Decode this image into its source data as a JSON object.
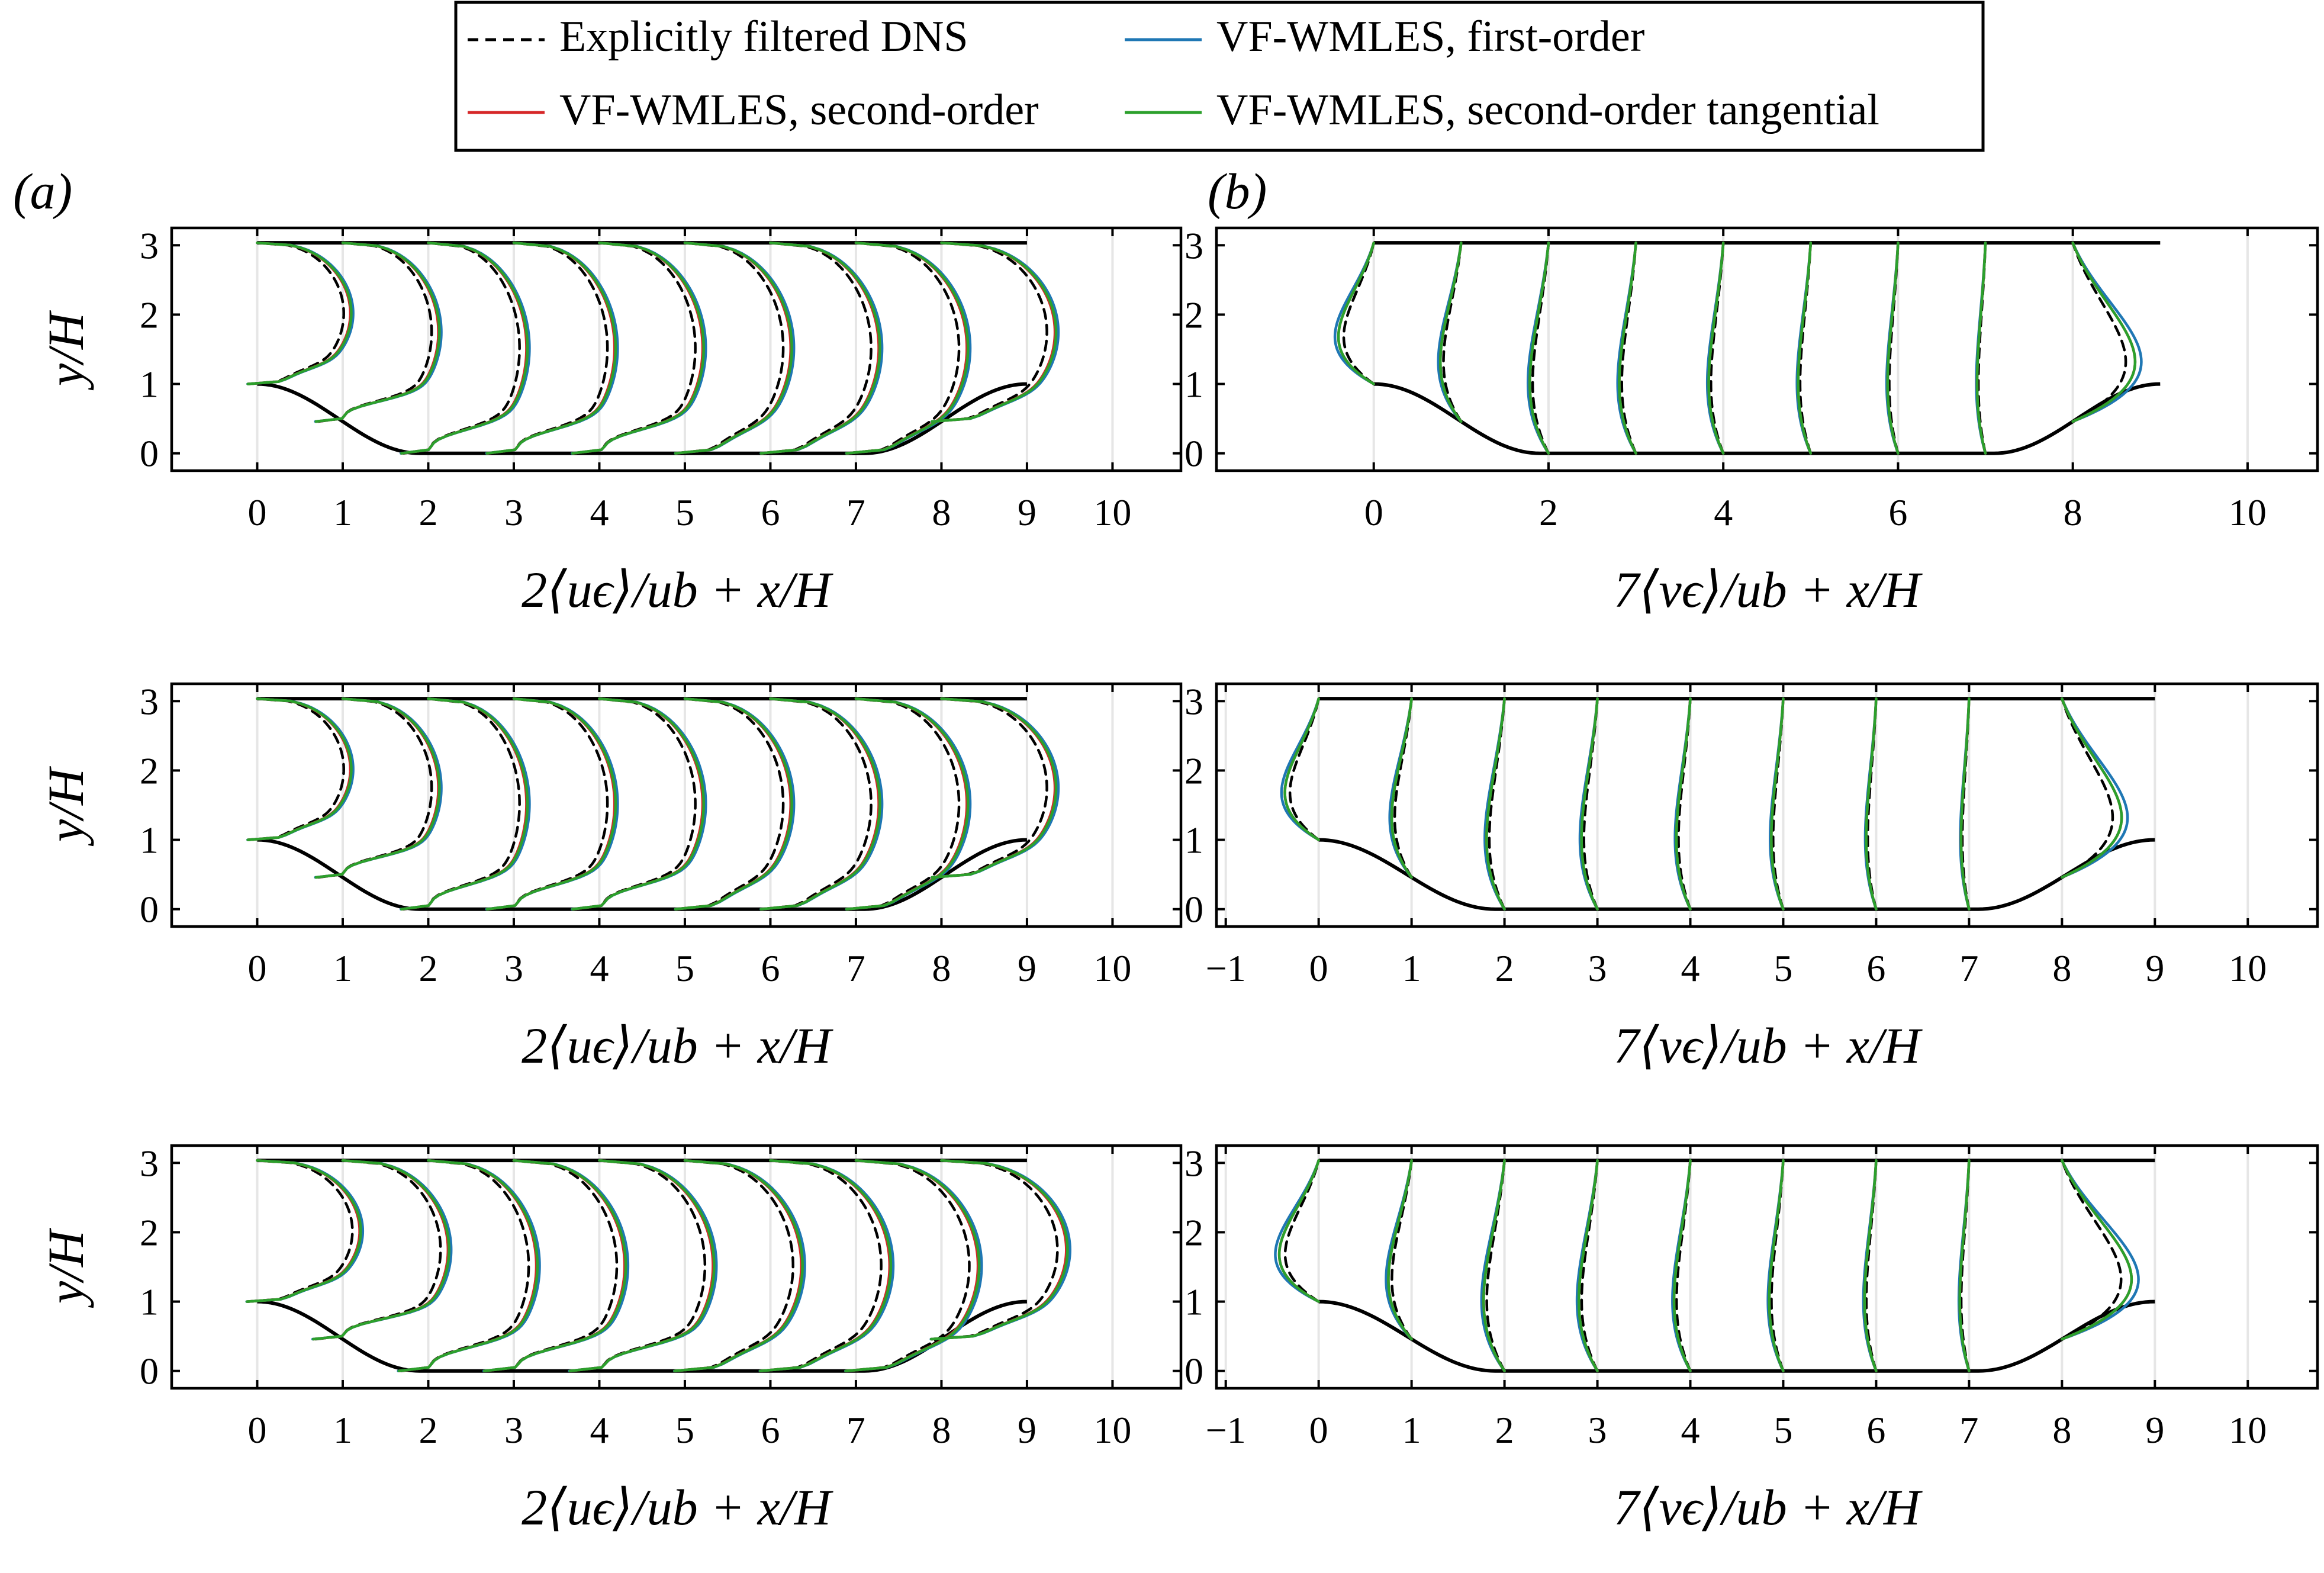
{
  "legend": {
    "entries": [
      {
        "key": "dns",
        "label": "Explicitly filtered DNS",
        "color": "#000000",
        "dash": true
      },
      {
        "key": "first",
        "label": "VF-WMLES, first-order",
        "color": "#1f77b4",
        "dash": false
      },
      {
        "key": "second",
        "label": "VF-WMLES, second-order",
        "color": "#d62728",
        "dash": false
      },
      {
        "key": "tangential",
        "label": "VF-WMLES, second-order tangential",
        "color": "#2ca02c",
        "dash": false
      }
    ]
  },
  "panel_labels": {
    "a": "(a)",
    "b": "(b)"
  },
  "chart_data": [
    {
      "id": "a1",
      "type": "line",
      "column": "a",
      "row": 1,
      "quantity": "u",
      "xlabel": "2⟨uϵ⟩/ub + x/H",
      "ylabel": "y/H",
      "xlim": [
        -1,
        10.8
      ],
      "ylim": [
        -0.25,
        3.25
      ],
      "xticks": [
        0,
        1,
        2,
        3,
        4,
        5,
        6,
        7,
        8,
        9,
        10
      ],
      "yticks": [
        0,
        1,
        2,
        3
      ],
      "station_x": [
        0,
        1,
        2,
        3,
        4,
        5,
        6,
        7,
        8
      ],
      "deviation_scale": 1.0
    },
    {
      "id": "b1",
      "type": "line",
      "column": "b",
      "row": 1,
      "quantity": "v",
      "xlabel": "7⟨vϵ⟩/ub + x/H",
      "ylabel": "",
      "xlim": [
        -1.8,
        10.8
      ],
      "ylim": [
        -0.25,
        3.25
      ],
      "xticks": [
        0,
        2,
        4,
        6,
        8,
        10
      ],
      "yticks": [
        0,
        1,
        2,
        3
      ],
      "station_x": [
        0,
        1,
        2,
        3,
        4,
        5,
        6,
        7,
        8
      ],
      "deviation_scale": 1.0
    },
    {
      "id": "a2",
      "type": "line",
      "column": "a",
      "row": 2,
      "quantity": "u",
      "xlabel": "2⟨uϵ⟩/ub + x/H",
      "ylabel": "y/H",
      "xlim": [
        -1,
        10.8
      ],
      "ylim": [
        -0.25,
        3.25
      ],
      "xticks": [
        0,
        1,
        2,
        3,
        4,
        5,
        6,
        7,
        8,
        9,
        10
      ],
      "yticks": [
        0,
        1,
        2,
        3
      ],
      "station_x": [
        0,
        1,
        2,
        3,
        4,
        5,
        6,
        7,
        8
      ],
      "deviation_scale": 1.0
    },
    {
      "id": "b2",
      "type": "line",
      "column": "b",
      "row": 2,
      "quantity": "v",
      "xlabel": "7⟨vϵ⟩/ub + x/H",
      "ylabel": "",
      "xlim": [
        -1.1,
        10.75
      ],
      "ylim": [
        -0.25,
        3.25
      ],
      "xticks": [
        -1,
        0,
        1,
        2,
        3,
        4,
        5,
        6,
        7,
        8,
        9,
        10
      ],
      "yticks": [
        0,
        1,
        2,
        3
      ],
      "station_x": [
        0,
        1,
        2,
        3,
        4,
        5,
        6,
        7,
        8
      ],
      "deviation_scale": 0.9
    },
    {
      "id": "a3",
      "type": "line",
      "column": "a",
      "row": 3,
      "quantity": "u",
      "xlabel": "2⟨uϵ⟩/ub + x/H",
      "ylabel": "y/H",
      "xlim": [
        -1,
        10.8
      ],
      "ylim": [
        -0.25,
        3.25
      ],
      "xticks": [
        0,
        1,
        2,
        3,
        4,
        5,
        6,
        7,
        8,
        9,
        10
      ],
      "yticks": [
        0,
        1,
        2,
        3
      ],
      "station_x": [
        0,
        1,
        2,
        3,
        4,
        5,
        6,
        7,
        8
      ],
      "deviation_scale": 1.1
    },
    {
      "id": "b3",
      "type": "line",
      "column": "b",
      "row": 3,
      "quantity": "v",
      "xlabel": "7⟨vϵ⟩/ub + x/H",
      "ylabel": "",
      "xlim": [
        -1.1,
        10.75
      ],
      "ylim": [
        -0.25,
        3.25
      ],
      "xticks": [
        -1,
        0,
        1,
        2,
        3,
        4,
        5,
        6,
        7,
        8,
        9,
        10
      ],
      "yticks": [
        0,
        1,
        2,
        3
      ],
      "station_x": [
        0,
        1,
        2,
        3,
        4,
        5,
        6,
        7,
        8
      ],
      "deviation_scale": 1.05
    }
  ]
}
